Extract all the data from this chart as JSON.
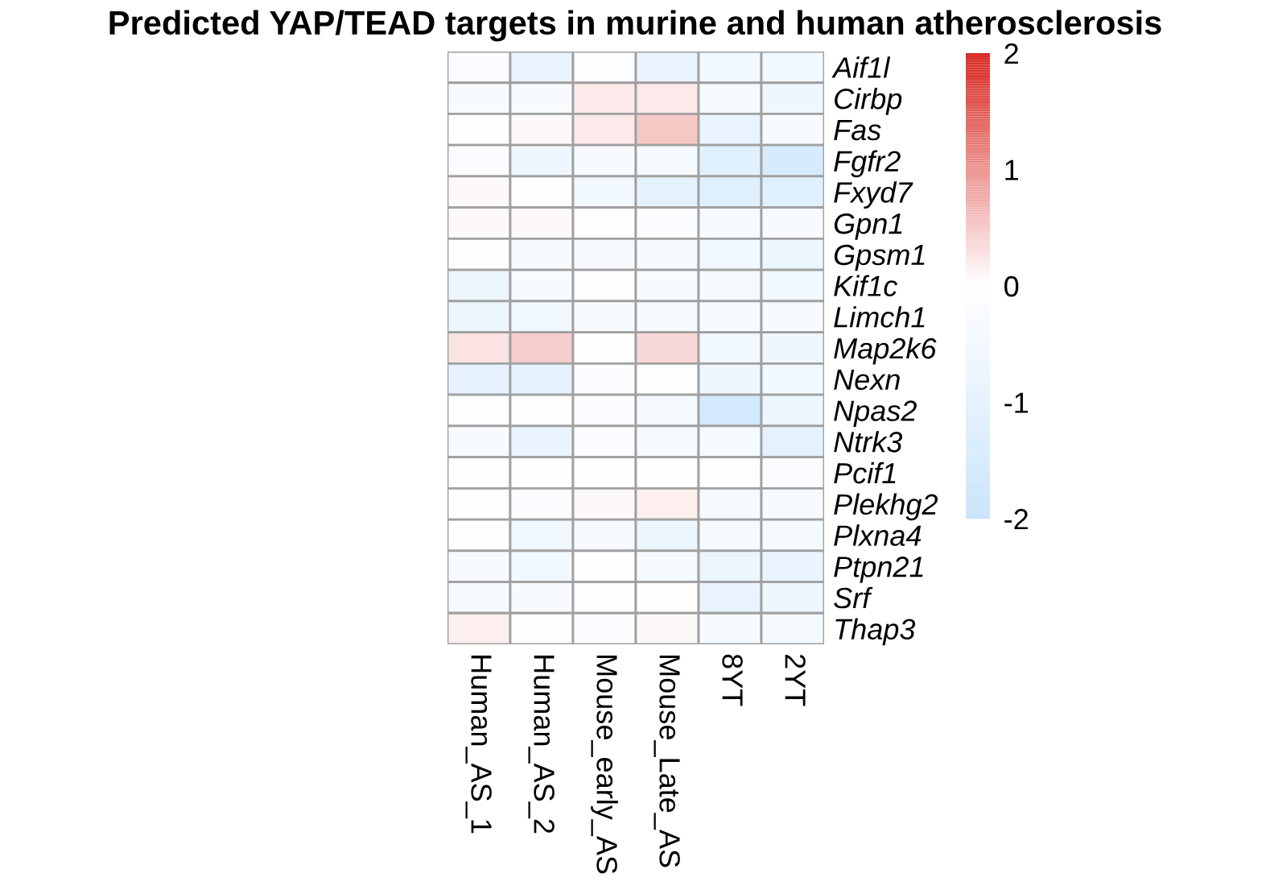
{
  "chart_data": {
    "type": "heatmap",
    "title": "Predicted YAP/TEAD targets in murine and human atherosclerosis",
    "categories": [
      "Human_AS_1",
      "Human_AS_2",
      "Mouse_early_AS",
      "Mouse_Late_AS",
      "8YT",
      "2YT"
    ],
    "y_categories": [
      "Aif1l",
      "Cirbp",
      "Fas",
      "Fgfr2",
      "Fxyd7",
      "Gpn1",
      "Gpsm1",
      "Kif1c",
      "Limch1",
      "Map2k6",
      "Nexn",
      "Npas2",
      "Ntrk3",
      "Pcif1",
      "Plekhg2",
      "Plxna4",
      "Ptpn21",
      "Srf",
      "Thap3"
    ],
    "cells": [
      [
        -0.2,
        -0.8,
        -0.1,
        -0.8,
        -0.5,
        -0.5
      ],
      [
        -0.3,
        -0.3,
        0.2,
        0.2,
        -0.4,
        -0.6
      ],
      [
        -0.1,
        0.05,
        0.2,
        0.5,
        -0.8,
        -0.3
      ],
      [
        -0.2,
        -0.6,
        -0.3,
        -0.4,
        -1.1,
        -1.5
      ],
      [
        0.05,
        -0.1,
        -0.5,
        -1.0,
        -1.2,
        -1.1
      ],
      [
        0.05,
        0.05,
        -0.1,
        -0.2,
        -0.4,
        -0.3
      ],
      [
        0.0,
        -0.3,
        -0.3,
        -0.4,
        -0.5,
        -0.7
      ],
      [
        -0.7,
        -0.3,
        -0.1,
        -0.3,
        -0.4,
        -0.5
      ],
      [
        -0.7,
        -0.5,
        -0.3,
        -0.4,
        -0.3,
        -0.3
      ],
      [
        0.25,
        0.45,
        -0.1,
        0.35,
        -0.5,
        -0.6
      ],
      [
        -0.9,
        -0.9,
        -0.2,
        -0.1,
        -0.6,
        -0.5
      ],
      [
        -0.05,
        -0.05,
        -0.2,
        -0.4,
        -1.6,
        -0.7
      ],
      [
        -0.3,
        -0.8,
        -0.2,
        -0.4,
        -0.4,
        -1.0
      ],
      [
        -0.05,
        0.0,
        -0.1,
        0.0,
        -0.1,
        -0.2
      ],
      [
        -0.1,
        -0.2,
        0.05,
        0.15,
        -0.4,
        -0.3
      ],
      [
        0.0,
        -0.5,
        -0.3,
        -0.7,
        -0.4,
        -0.4
      ],
      [
        -0.3,
        -0.5,
        -0.05,
        -0.4,
        -0.7,
        -0.8
      ],
      [
        -0.3,
        -0.3,
        -0.05,
        0.0,
        -0.8,
        -0.6
      ],
      [
        0.15,
        -0.05,
        -0.2,
        0.05,
        -0.4,
        -0.4
      ]
    ],
    "clim": [
      -2,
      2
    ],
    "cticks": [
      -2,
      -1,
      0,
      1,
      2
    ]
  }
}
